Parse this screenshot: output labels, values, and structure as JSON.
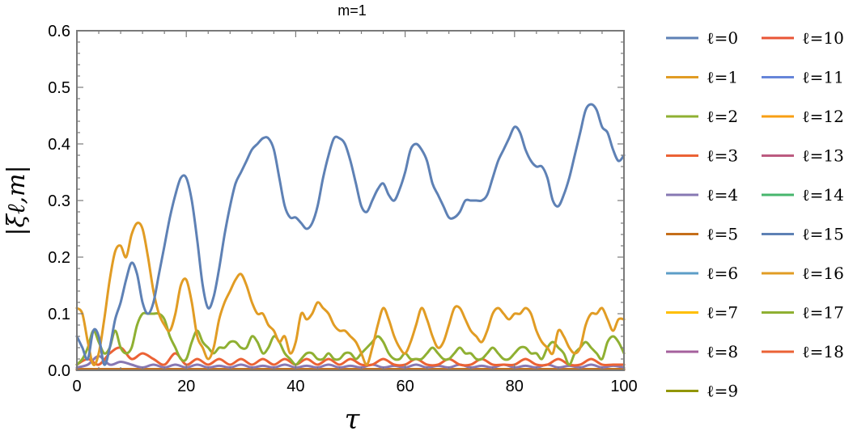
{
  "chart_data": {
    "type": "line",
    "title": "m=1",
    "xlabel": "τ",
    "ylabel": "|ξℓ,m|",
    "xlim": [
      0,
      100
    ],
    "ylim": [
      0,
      0.6
    ],
    "x_ticks": [
      "0",
      "20",
      "40",
      "60",
      "80",
      "100"
    ],
    "y_ticks": [
      "0.0",
      "0.1",
      "0.2",
      "0.3",
      "0.4",
      "0.5",
      "0.6"
    ],
    "grid": false,
    "legend_position": "right",
    "series": [
      {
        "name": "ℓ=0",
        "color": "#5E81B5",
        "x": [
          0,
          1,
          2,
          3,
          4,
          5,
          6,
          7,
          8,
          9,
          10,
          11,
          12,
          13,
          14,
          15,
          16,
          17,
          18,
          19,
          20,
          21,
          22,
          23,
          24,
          25,
          26,
          27,
          28,
          29,
          30,
          31,
          32,
          33,
          34,
          35,
          36,
          37,
          38,
          39,
          40,
          41,
          42,
          43,
          44,
          45,
          46,
          47,
          48,
          49,
          50,
          51,
          52,
          53,
          54,
          55,
          56,
          57,
          58,
          59,
          60,
          61,
          62,
          63,
          64,
          65,
          66,
          67,
          68,
          69,
          70,
          71,
          72,
          73,
          74,
          75,
          76,
          77,
          78,
          79,
          80,
          81,
          82,
          83,
          84,
          85,
          86,
          87,
          88,
          89,
          90,
          91,
          92,
          93,
          94,
          95,
          96,
          97,
          98,
          99,
          100
        ],
        "y": [
          0.06,
          0.04,
          0.02,
          0.07,
          0.06,
          0.01,
          0.04,
          0.09,
          0.12,
          0.16,
          0.19,
          0.17,
          0.12,
          0.1,
          0.12,
          0.17,
          0.22,
          0.27,
          0.31,
          0.34,
          0.34,
          0.3,
          0.23,
          0.15,
          0.11,
          0.13,
          0.18,
          0.24,
          0.29,
          0.33,
          0.35,
          0.37,
          0.39,
          0.4,
          0.41,
          0.41,
          0.39,
          0.34,
          0.29,
          0.27,
          0.27,
          0.26,
          0.25,
          0.26,
          0.29,
          0.34,
          0.38,
          0.41,
          0.41,
          0.4,
          0.37,
          0.33,
          0.29,
          0.28,
          0.3,
          0.32,
          0.33,
          0.31,
          0.3,
          0.32,
          0.35,
          0.39,
          0.4,
          0.39,
          0.37,
          0.33,
          0.31,
          0.29,
          0.27,
          0.27,
          0.28,
          0.3,
          0.3,
          0.3,
          0.3,
          0.31,
          0.34,
          0.37,
          0.39,
          0.41,
          0.43,
          0.42,
          0.39,
          0.37,
          0.36,
          0.36,
          0.34,
          0.3,
          0.29,
          0.31,
          0.34,
          0.38,
          0.42,
          0.46,
          0.47,
          0.46,
          0.43,
          0.42,
          0.39,
          0.37,
          0.38
        ]
      },
      {
        "name": "ℓ=1",
        "color": "#E19C24",
        "x": [
          0,
          1,
          2,
          3,
          4,
          5,
          6,
          7,
          8,
          9,
          10,
          11,
          12,
          13,
          14,
          15,
          16,
          17,
          18,
          19,
          20,
          21,
          22,
          23,
          24,
          25,
          26,
          27,
          28,
          29,
          30,
          31,
          32,
          33,
          34,
          35,
          36,
          37,
          38,
          39,
          40,
          41,
          42,
          43,
          44,
          45,
          46,
          47,
          48,
          49,
          50,
          51,
          52,
          53,
          54,
          55,
          56,
          57,
          58,
          59,
          60,
          61,
          62,
          63,
          64,
          65,
          66,
          67,
          68,
          69,
          70,
          71,
          72,
          73,
          74,
          75,
          76,
          77,
          78,
          79,
          80,
          81,
          82,
          83,
          84,
          85,
          86,
          87,
          88,
          89,
          90,
          91,
          92,
          93,
          94,
          95,
          96,
          97,
          98,
          99,
          100
        ],
        "y": [
          0.11,
          0.1,
          0.05,
          0.01,
          0.03,
          0.09,
          0.16,
          0.21,
          0.22,
          0.2,
          0.24,
          0.26,
          0.25,
          0.2,
          0.14,
          0.1,
          0.08,
          0.07,
          0.1,
          0.15,
          0.16,
          0.12,
          0.06,
          0.04,
          0.02,
          0.04,
          0.09,
          0.12,
          0.14,
          0.16,
          0.17,
          0.15,
          0.12,
          0.1,
          0.1,
          0.08,
          0.07,
          0.05,
          0.06,
          0.03,
          0.05,
          0.1,
          0.09,
          0.1,
          0.12,
          0.11,
          0.1,
          0.08,
          0.07,
          0.07,
          0.06,
          0.05,
          0.03,
          0.01,
          0.04,
          0.08,
          0.11,
          0.09,
          0.06,
          0.04,
          0.03,
          0.05,
          0.08,
          0.11,
          0.09,
          0.06,
          0.04,
          0.05,
          0.08,
          0.11,
          0.11,
          0.09,
          0.07,
          0.06,
          0.05,
          0.07,
          0.1,
          0.11,
          0.1,
          0.09,
          0.1,
          0.1,
          0.11,
          0.1,
          0.07,
          0.05,
          0.04,
          0.03,
          0.07,
          0.06,
          0.04,
          0.03,
          0.04,
          0.08,
          0.1,
          0.1,
          0.11,
          0.09,
          0.07,
          0.09,
          0.09
        ]
      },
      {
        "name": "ℓ=2",
        "color": "#8FB032",
        "x": [
          0,
          1,
          2,
          3,
          4,
          5,
          6,
          7,
          8,
          9,
          10,
          11,
          12,
          13,
          14,
          15,
          16,
          17,
          18,
          19,
          20,
          21,
          22,
          23,
          24,
          25,
          26,
          27,
          28,
          29,
          30,
          31,
          32,
          33,
          34,
          35,
          36,
          37,
          38,
          39,
          40,
          41,
          42,
          43,
          44,
          45,
          46,
          47,
          48,
          49,
          50,
          51,
          52,
          53,
          54,
          55,
          56,
          57,
          58,
          59,
          60,
          61,
          62,
          63,
          64,
          65,
          66,
          67,
          68,
          69,
          70,
          71,
          72,
          73,
          74,
          75,
          76,
          77,
          78,
          79,
          80,
          81,
          82,
          83,
          84,
          85,
          86,
          87,
          88,
          89,
          90,
          91,
          92,
          93,
          94,
          95,
          96,
          97,
          98,
          99,
          100
        ],
        "y": [
          0.01,
          0.02,
          0.04,
          0.07,
          0.05,
          0.03,
          0.04,
          0.07,
          0.04,
          0.03,
          0.04,
          0.08,
          0.1,
          0.1,
          0.1,
          0.1,
          0.09,
          0.06,
          0.04,
          0.02,
          0.02,
          0.05,
          0.07,
          0.05,
          0.04,
          0.03,
          0.04,
          0.04,
          0.05,
          0.05,
          0.04,
          0.04,
          0.06,
          0.05,
          0.03,
          0.04,
          0.06,
          0.05,
          0.03,
          0.02,
          0.01,
          0.02,
          0.03,
          0.03,
          0.02,
          0.02,
          0.03,
          0.02,
          0.02,
          0.03,
          0.03,
          0.02,
          0.03,
          0.04,
          0.05,
          0.06,
          0.05,
          0.03,
          0.02,
          0.02,
          0.03,
          0.02,
          0.02,
          0.02,
          0.03,
          0.04,
          0.03,
          0.02,
          0.02,
          0.03,
          0.04,
          0.03,
          0.03,
          0.02,
          0.02,
          0.03,
          0.04,
          0.03,
          0.02,
          0.02,
          0.03,
          0.04,
          0.04,
          0.03,
          0.03,
          0.02,
          0.04,
          0.05,
          0.04,
          0.03,
          0.01,
          0.03,
          0.04,
          0.05,
          0.04,
          0.03,
          0.02,
          0.05,
          0.06,
          0.05,
          0.03
        ]
      },
      {
        "name": "ℓ=3",
        "color": "#EB6235",
        "x": [
          0,
          2,
          4,
          6,
          8,
          10,
          12,
          14,
          16,
          18,
          20,
          22,
          24,
          26,
          28,
          30,
          32,
          34,
          36,
          38,
          40,
          42,
          44,
          46,
          48,
          50,
          52,
          54,
          56,
          58,
          60,
          62,
          64,
          66,
          68,
          70,
          72,
          74,
          76,
          78,
          80,
          82,
          84,
          86,
          88,
          90,
          92,
          94,
          96,
          98,
          100
        ],
        "y": [
          0.01,
          0.02,
          0.01,
          0.03,
          0.04,
          0.02,
          0.03,
          0.02,
          0.01,
          0.03,
          0.01,
          0.02,
          0.01,
          0.02,
          0.01,
          0.02,
          0.01,
          0.02,
          0.01,
          0.02,
          0.01,
          0.02,
          0.01,
          0.02,
          0.01,
          0.02,
          0.01,
          0.01,
          0.02,
          0.01,
          0.01,
          0.02,
          0.01,
          0.01,
          0.02,
          0.01,
          0.01,
          0.02,
          0.01,
          0.01,
          0.01,
          0.02,
          0.01,
          0.01,
          0.02,
          0.01,
          0.01,
          0.02,
          0.01,
          0.01,
          0.01
        ]
      },
      {
        "name": "ℓ=4",
        "color": "#8778B3",
        "x": [
          0,
          2,
          4,
          6,
          8,
          10,
          12,
          14,
          16,
          18,
          20,
          22,
          24,
          26,
          28,
          30,
          32,
          34,
          36,
          38,
          40,
          42,
          44,
          46,
          48,
          50,
          52,
          54,
          56,
          58,
          60,
          62,
          64,
          66,
          68,
          70,
          72,
          74,
          76,
          78,
          80,
          82,
          84,
          86,
          88,
          90,
          92,
          94,
          96,
          98,
          100
        ],
        "y": [
          0.005,
          0.01,
          0.025,
          0.01,
          0.015,
          0.01,
          0.005,
          0.01,
          0.005,
          0.01,
          0.005,
          0.01,
          0.005,
          0.008,
          0.005,
          0.01,
          0.005,
          0.008,
          0.005,
          0.01,
          0.005,
          0.008,
          0.005,
          0.01,
          0.005,
          0.008,
          0.005,
          0.01,
          0.005,
          0.008,
          0.005,
          0.01,
          0.005,
          0.008,
          0.005,
          0.01,
          0.005,
          0.008,
          0.005,
          0.01,
          0.005,
          0.008,
          0.005,
          0.01,
          0.005,
          0.008,
          0.005,
          0.01,
          0.005,
          0.008,
          0.005
        ]
      },
      {
        "name": "ℓ=5",
        "color": "#C56E1A",
        "x": [
          0,
          100
        ],
        "y": [
          0.002,
          0.002
        ]
      },
      {
        "name": "ℓ=6",
        "color": "#5D9EC7",
        "x": [
          0,
          100
        ],
        "y": [
          0.002,
          0.002
        ]
      },
      {
        "name": "ℓ=7",
        "color": "#FFBF00",
        "x": [
          0,
          100
        ],
        "y": [
          0.002,
          0.002
        ]
      },
      {
        "name": "ℓ=8",
        "color": "#A5609D",
        "x": [
          0,
          100
        ],
        "y": [
          0.002,
          0.002
        ]
      },
      {
        "name": "ℓ=9",
        "color": "#929600",
        "x": [
          0,
          100
        ],
        "y": [
          0.002,
          0.002
        ]
      },
      {
        "name": "ℓ=10",
        "color": "#E95536",
        "x": [
          0,
          100
        ],
        "y": [
          0.001,
          0.001
        ]
      },
      {
        "name": "ℓ=11",
        "color": "#6685D9",
        "x": [
          0,
          100
        ],
        "y": [
          0.001,
          0.001
        ]
      },
      {
        "name": "ℓ=12",
        "color": "#F89F13",
        "x": [
          0,
          100
        ],
        "y": [
          0.001,
          0.001
        ]
      },
      {
        "name": "ℓ=13",
        "color": "#BC5B80",
        "x": [
          0,
          100
        ],
        "y": [
          0.001,
          0.001
        ]
      },
      {
        "name": "ℓ=14",
        "color": "#47B66D",
        "x": [
          0,
          100
        ],
        "y": [
          0.001,
          0.001
        ]
      },
      {
        "name": "ℓ=15",
        "color": "#5E81B5",
        "x": [
          0,
          100
        ],
        "y": [
          0.001,
          0.001
        ]
      },
      {
        "name": "ℓ=16",
        "color": "#E19C24",
        "x": [
          0,
          100
        ],
        "y": [
          0.001,
          0.001
        ]
      },
      {
        "name": "ℓ=17",
        "color": "#8FB032",
        "x": [
          0,
          100
        ],
        "y": [
          0.001,
          0.001
        ]
      },
      {
        "name": "ℓ=18",
        "color": "#EB6235",
        "x": [
          0,
          100
        ],
        "y": [
          0.001,
          0.001
        ]
      }
    ]
  }
}
